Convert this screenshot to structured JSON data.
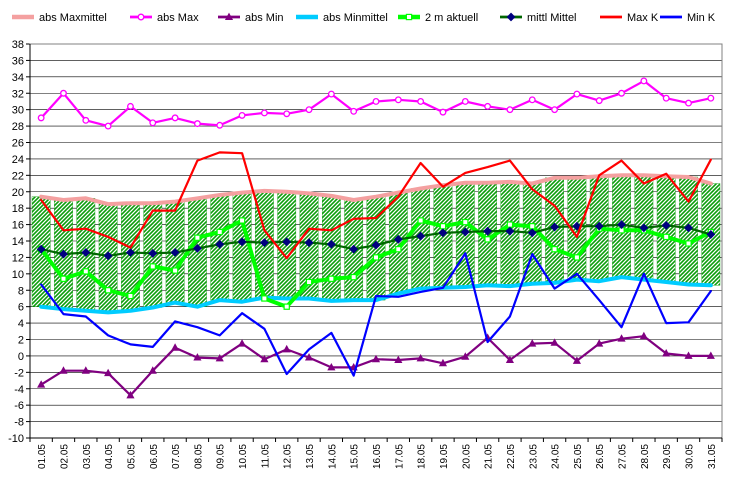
{
  "chart_data": {
    "type": "line",
    "legend_position": "top",
    "grid": true,
    "ylim": [
      -10,
      38
    ],
    "y_tick_step": 2,
    "categories": [
      "01.05",
      "02.05",
      "03.05",
      "04.05",
      "05.05",
      "06.05",
      "07.05",
      "08.05",
      "09.05",
      "10.05",
      "11.05",
      "12.05",
      "13.05",
      "14.05",
      "15.05",
      "16.05",
      "17.05",
      "18.05",
      "19.05",
      "20.05",
      "21.05",
      "22.05",
      "23.05",
      "24.05",
      "25.05",
      "26.05",
      "27.05",
      "28.05",
      "29.05",
      "30.05",
      "31.05"
    ],
    "band": {
      "upper_series": "abs Maxmittel",
      "lower_series": "abs Minmittel",
      "fill_color": "#009900"
    },
    "series": [
      {
        "name": "abs Maxmittel",
        "color": "#f4a0a0",
        "style": "thick",
        "values": [
          19.4,
          19.0,
          19.2,
          18.5,
          18.6,
          18.6,
          18.8,
          19.2,
          19.6,
          19.9,
          20.1,
          20.0,
          19.8,
          19.5,
          19.0,
          19.4,
          19.9,
          20.4,
          20.8,
          21.1,
          21.1,
          21.2,
          21.0,
          21.7,
          21.7,
          21.9,
          22.0,
          22.0,
          21.9,
          21.8,
          21.0
        ]
      },
      {
        "name": "abs Max",
        "color": "#ff00ff",
        "style": "line-open-circle",
        "values": [
          29.0,
          32.0,
          28.7,
          28.0,
          30.4,
          28.4,
          29.0,
          28.3,
          28.1,
          29.3,
          29.6,
          29.5,
          30.0,
          31.9,
          29.8,
          31.0,
          31.2,
          31.0,
          29.7,
          31.0,
          30.4,
          30.0,
          31.2,
          30.0,
          31.9,
          31.1,
          32.0,
          33.5,
          31.4,
          30.8,
          31.4
        ]
      },
      {
        "name": "abs Min",
        "color": "#800080",
        "style": "line-triangle",
        "values": [
          -3.5,
          -1.8,
          -1.8,
          -2.1,
          -4.8,
          -1.8,
          1.0,
          -0.2,
          -0.3,
          1.5,
          -0.4,
          0.8,
          -0.2,
          -1.4,
          -1.4,
          -0.4,
          -0.5,
          -0.3,
          -0.9,
          -0.1,
          2.2,
          -0.5,
          1.5,
          1.6,
          -0.6,
          1.5,
          2.1,
          2.4,
          0.3,
          0.0,
          0.0
        ]
      },
      {
        "name": "abs Minmittel",
        "color": "#00ccff",
        "style": "thick",
        "values": [
          6.0,
          5.7,
          5.5,
          5.3,
          5.5,
          5.9,
          6.5,
          6.0,
          6.8,
          6.6,
          7.1,
          7.0,
          7.0,
          6.7,
          6.8,
          6.8,
          7.6,
          8.2,
          8.3,
          8.4,
          8.6,
          8.5,
          8.8,
          8.9,
          9.3,
          9.1,
          9.6,
          9.3,
          9.0,
          8.7,
          8.6
        ]
      },
      {
        "name": "2 m aktuell",
        "color": "#00ff00",
        "style": "thick-open-square",
        "values": [
          13.0,
          9.4,
          10.3,
          8.0,
          7.3,
          10.9,
          10.4,
          14.4,
          15.1,
          16.5,
          7.0,
          6.0,
          9.0,
          9.4,
          9.6,
          12.0,
          13.0,
          16.5,
          15.8,
          16.3,
          14.2,
          16.0,
          15.8,
          13.0,
          12.0,
          15.5,
          15.3,
          15.3,
          14.5,
          13.7,
          15.1
        ]
      },
      {
        "name": "mittl Mittel",
        "color": "#006600",
        "style": "line-diamond",
        "values": [
          13.0,
          12.4,
          12.6,
          12.2,
          12.6,
          12.5,
          12.6,
          13.1,
          13.6,
          13.9,
          13.8,
          13.9,
          13.8,
          13.6,
          13.0,
          13.5,
          14.2,
          14.6,
          15.0,
          15.1,
          15.2,
          15.2,
          15.0,
          15.7,
          15.8,
          15.8,
          16.0,
          15.6,
          15.9,
          15.6,
          14.8
        ]
      },
      {
        "name": "Max K",
        "color": "#ff0000",
        "style": "line",
        "values": [
          19.0,
          15.3,
          15.5,
          14.5,
          13.2,
          17.7,
          17.7,
          23.8,
          24.8,
          24.7,
          15.3,
          11.9,
          15.5,
          15.3,
          16.7,
          16.8,
          19.4,
          23.5,
          20.6,
          22.3,
          23.0,
          23.8,
          20.3,
          18.3,
          14.5,
          22.0,
          23.8,
          21.0,
          22.2,
          18.8,
          23.9
        ]
      },
      {
        "name": "Min K",
        "color": "#0000ff",
        "style": "line",
        "values": [
          8.7,
          5.1,
          4.8,
          2.5,
          1.4,
          1.1,
          4.2,
          3.5,
          2.5,
          5.2,
          3.3,
          -2.2,
          0.8,
          2.8,
          -2.4,
          7.3,
          7.2,
          7.8,
          8.3,
          12.5,
          1.7,
          4.8,
          12.4,
          8.2,
          10.0,
          6.8,
          3.5,
          10.0,
          4.0,
          4.1,
          7.9
        ]
      }
    ]
  }
}
